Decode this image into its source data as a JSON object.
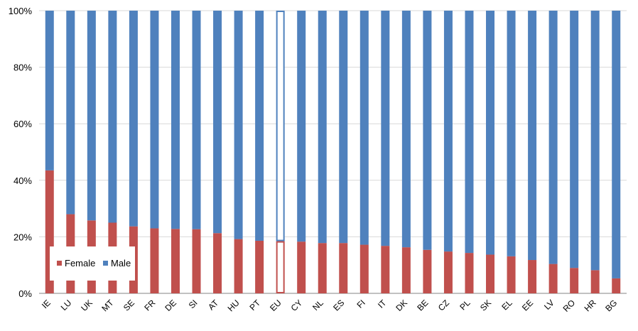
{
  "chart_data": {
    "type": "bar",
    "stacked": true,
    "percent_stacked": true,
    "categories": [
      "IE",
      "LU",
      "UK",
      "MT",
      "SE",
      "FR",
      "DE",
      "SI",
      "AT",
      "HU",
      "PT",
      "EU",
      "CY",
      "NL",
      "ES",
      "FI",
      "IT",
      "DK",
      "BE",
      "CZ",
      "PL",
      "SK",
      "EL",
      "EE",
      "LV",
      "RO",
      "HR",
      "BG"
    ],
    "series": [
      {
        "name": "Female",
        "color": "#c0504d",
        "values": [
          43.5,
          28,
          25.8,
          25,
          23.7,
          23,
          22.8,
          22.7,
          21.3,
          19.2,
          18.6,
          18.2,
          18.3,
          17.8,
          17.8,
          17.2,
          16.8,
          16.3,
          15.4,
          14.8,
          14.3,
          13.7,
          13.1,
          11.8,
          10.4,
          9,
          8.2,
          5.3
        ]
      },
      {
        "name": "Male",
        "color": "#4f81bd",
        "values": [
          56.5,
          72,
          74.2,
          75,
          76.3,
          77,
          77.2,
          77.3,
          78.7,
          80.8,
          81.4,
          81.8,
          81.7,
          82.2,
          82.2,
          82.8,
          83.2,
          83.7,
          84.6,
          85.2,
          85.7,
          86.3,
          86.9,
          88.2,
          89.6,
          91,
          91.8,
          94.7
        ]
      }
    ],
    "highlight_category": "EU",
    "ylim": [
      0,
      100
    ],
    "yticks": [
      "0%",
      "20%",
      "40%",
      "60%",
      "80%",
      "100%"
    ],
    "grid": true,
    "legend": {
      "placement": "left-inside",
      "entries": [
        "Female",
        "Male"
      ]
    }
  }
}
